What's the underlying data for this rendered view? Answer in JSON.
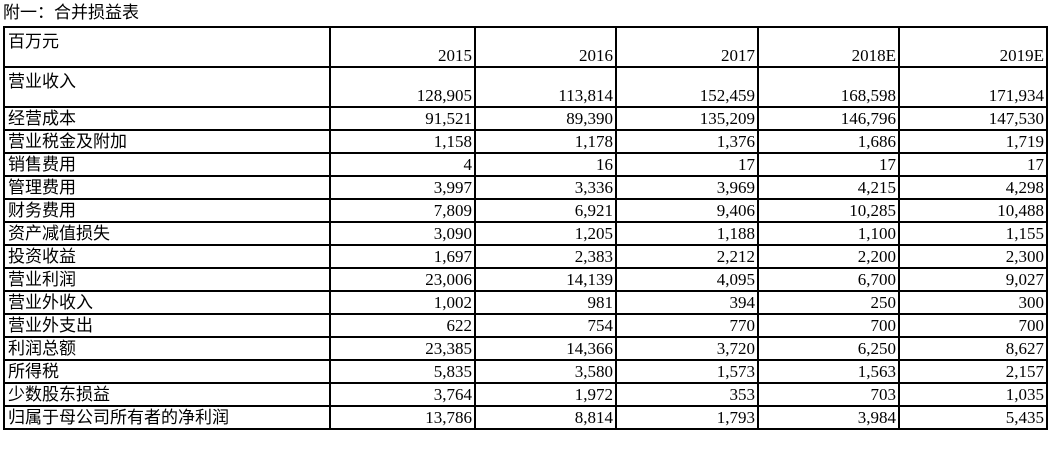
{
  "title": "附一：合并损益表",
  "header": {
    "unit": "百万元",
    "years": [
      "2015",
      "2016",
      "2017",
      "2018E",
      "2019E"
    ]
  },
  "rows": [
    {
      "label": "营业收入",
      "values": [
        "128,905",
        "113,814",
        "152,459",
        "168,598",
        "171,934"
      ]
    },
    {
      "label": "经营成本",
      "values": [
        "91,521",
        "89,390",
        "135,209",
        "146,796",
        "147,530"
      ]
    },
    {
      "label": "营业税金及附加",
      "values": [
        "1,158",
        "1,178",
        "1,376",
        "1,686",
        "1,719"
      ]
    },
    {
      "label": "销售费用",
      "values": [
        "4",
        "16",
        "17",
        "17",
        "17"
      ]
    },
    {
      "label": "管理费用",
      "values": [
        "3,997",
        "3,336",
        "3,969",
        "4,215",
        "4,298"
      ]
    },
    {
      "label": "财务费用",
      "values": [
        "7,809",
        "6,921",
        "9,406",
        "10,285",
        "10,488"
      ]
    },
    {
      "label": "资产减值损失",
      "values": [
        "3,090",
        "1,205",
        "1,188",
        "1,100",
        "1,155"
      ]
    },
    {
      "label": "投资收益",
      "values": [
        "1,697",
        "2,383",
        "2,212",
        "2,200",
        "2,300"
      ]
    },
    {
      "label": "营业利润",
      "values": [
        "23,006",
        "14,139",
        "4,095",
        "6,700",
        "9,027"
      ]
    },
    {
      "label": "营业外收入",
      "values": [
        "1,002",
        "981",
        "394",
        "250",
        "300"
      ]
    },
    {
      "label": "营业外支出",
      "values": [
        "622",
        "754",
        "770",
        "700",
        "700"
      ]
    },
    {
      "label": "利润总额",
      "values": [
        "23,385",
        "14,366",
        "3,720",
        "6,250",
        "8,627"
      ]
    },
    {
      "label": "所得税",
      "values": [
        "5,835",
        "3,580",
        "1,573",
        "1,563",
        "2,157"
      ]
    },
    {
      "label": "少数股东损益",
      "values": [
        "3,764",
        "1,972",
        "353",
        "703",
        "1,035"
      ]
    },
    {
      "label": "归属于母公司所有者的净利润",
      "values": [
        "13,786",
        "8,814",
        "1,793",
        "3,984",
        "5,435"
      ]
    }
  ]
}
